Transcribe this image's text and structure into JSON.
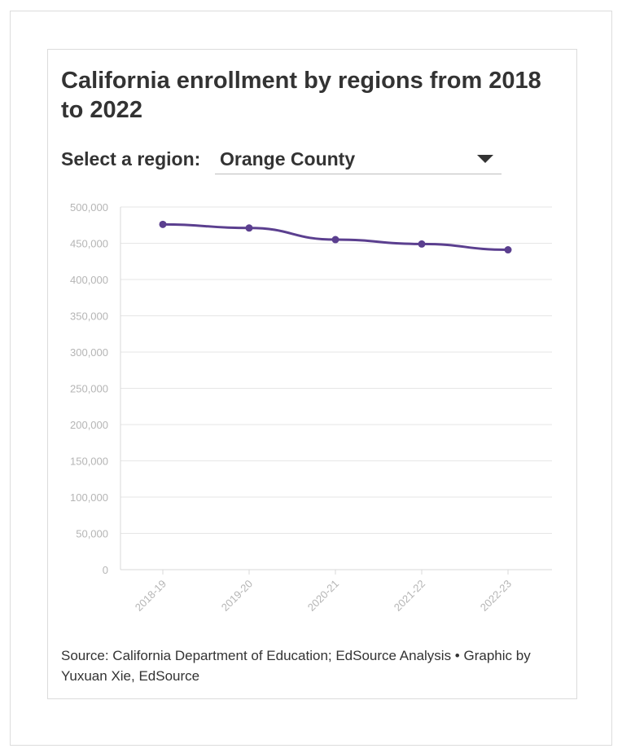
{
  "title": "California enrollment by regions from 2018 to 2022",
  "selector": {
    "label": "Select a region:",
    "selected": "Orange County"
  },
  "source": "Source: California Department of Education; EdSource Analysis • Graphic by Yuxuan Xie, EdSource",
  "colors": {
    "line": "#5b3f8f",
    "grid": "#e6e6e6",
    "tick_text": "#b5b5b5"
  },
  "chart_data": {
    "type": "line",
    "categories": [
      "2018-19",
      "2019-20",
      "2020-21",
      "2021-22",
      "2022-23"
    ],
    "series": [
      {
        "values": [
          476000,
          471000,
          455000,
          449000,
          441000
        ]
      }
    ],
    "yticks": [
      "0",
      "50,000",
      "100,000",
      "150,000",
      "200,000",
      "250,000",
      "300,000",
      "350,000",
      "400,000",
      "450,000",
      "500,000"
    ],
    "ylim": [
      0,
      500000
    ],
    "grid": true,
    "xlabel": "",
    "ylabel": ""
  }
}
